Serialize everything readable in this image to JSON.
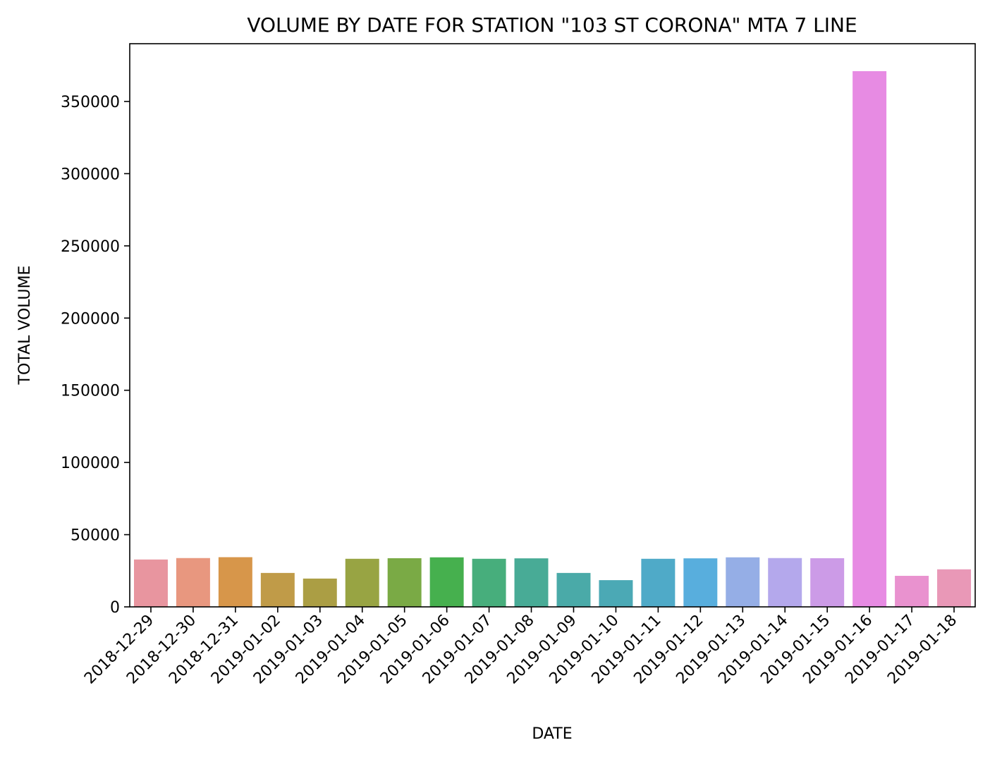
{
  "chart_data": {
    "type": "bar",
    "title": "VOLUME BY DATE FOR STATION \"103 ST CORONA\" MTA 7 LINE",
    "xlabel": "DATE",
    "ylabel": "TOTAL VOLUME",
    "ylim": [
      0,
      390000
    ],
    "yticks": [
      "0",
      "50000",
      "100000",
      "150000",
      "200000",
      "250000",
      "300000",
      "350000"
    ],
    "grid": false,
    "legend": "none",
    "categories": [
      "2018-12-29",
      "2018-12-30",
      "2018-12-31",
      "2019-01-02",
      "2019-01-03",
      "2019-01-04",
      "2019-01-05",
      "2019-01-06",
      "2019-01-07",
      "2019-01-08",
      "2019-01-09",
      "2019-01-10",
      "2019-01-11",
      "2019-01-12",
      "2019-01-13",
      "2019-01-14",
      "2019-01-15",
      "2019-01-16",
      "2019-01-17",
      "2019-01-18"
    ],
    "values": [
      32800,
      33800,
      34400,
      23500,
      19600,
      33300,
      33700,
      34300,
      33300,
      33600,
      23500,
      18500,
      33300,
      33600,
      34300,
      33800,
      33700,
      371000,
      21500,
      26000
    ],
    "colors": [
      "#e8959f",
      "#e8977f",
      "#d7964a",
      "#c09b48",
      "#ab9e44",
      "#98a443",
      "#7aaa45",
      "#46b04e",
      "#47ae7c",
      "#48ab96",
      "#4aaaa8",
      "#4ba9b5",
      "#4faac8",
      "#58aedd",
      "#95aee6",
      "#b4a8ec",
      "#cc9be7",
      "#e78be3",
      "#e992cf",
      "#e998b7"
    ]
  }
}
